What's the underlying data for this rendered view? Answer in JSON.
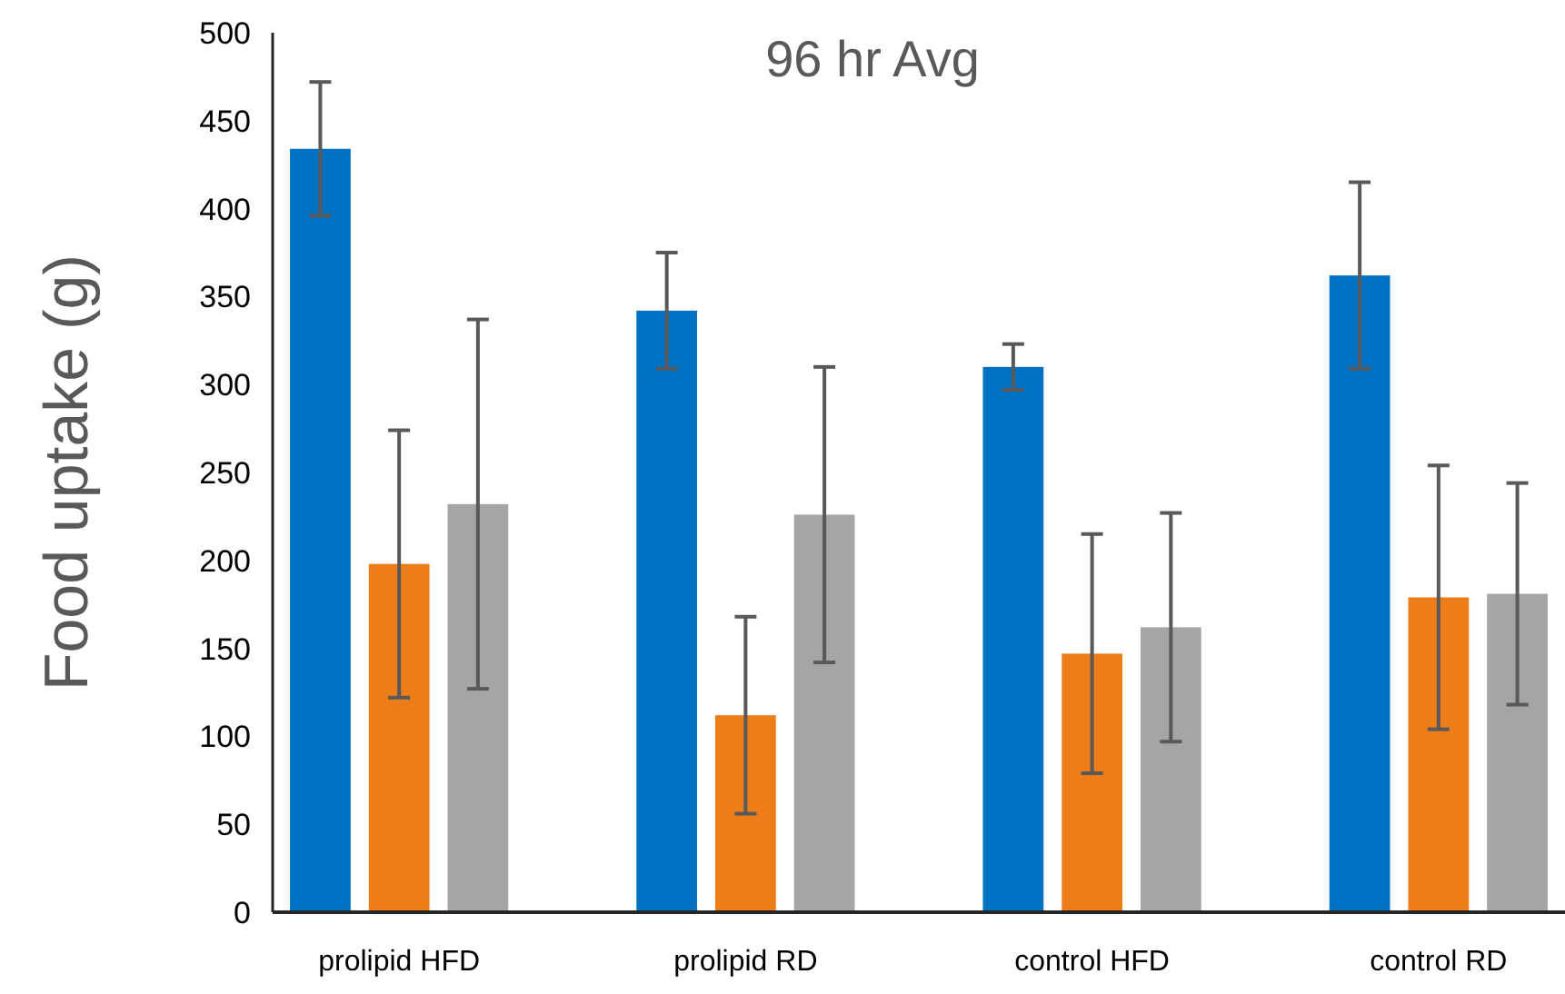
{
  "chart_data": {
    "type": "bar",
    "title": "96 hr Avg",
    "ylabel": "Food uptake (g)",
    "categories": [
      "prolipid HFD",
      "prolipid RD",
      "control HFD",
      "control RD"
    ],
    "series": [
      {
        "color": "#0070c0",
        "values": [
          434,
          342,
          310,
          362
        ],
        "errors": [
          38,
          33,
          13,
          53
        ]
      },
      {
        "color": "#ed7d18",
        "values": [
          198,
          112,
          147,
          179
        ],
        "errors": [
          76,
          56,
          68,
          75
        ]
      },
      {
        "color": "#a5a5a5",
        "values": [
          232,
          226,
          162,
          181
        ],
        "errors": [
          105,
          84,
          65,
          63
        ]
      }
    ],
    "ylim": [
      0,
      500
    ],
    "yticks": [
      0,
      50,
      100,
      150,
      200,
      250,
      300,
      350,
      400,
      450,
      500
    ],
    "grid": false
  }
}
